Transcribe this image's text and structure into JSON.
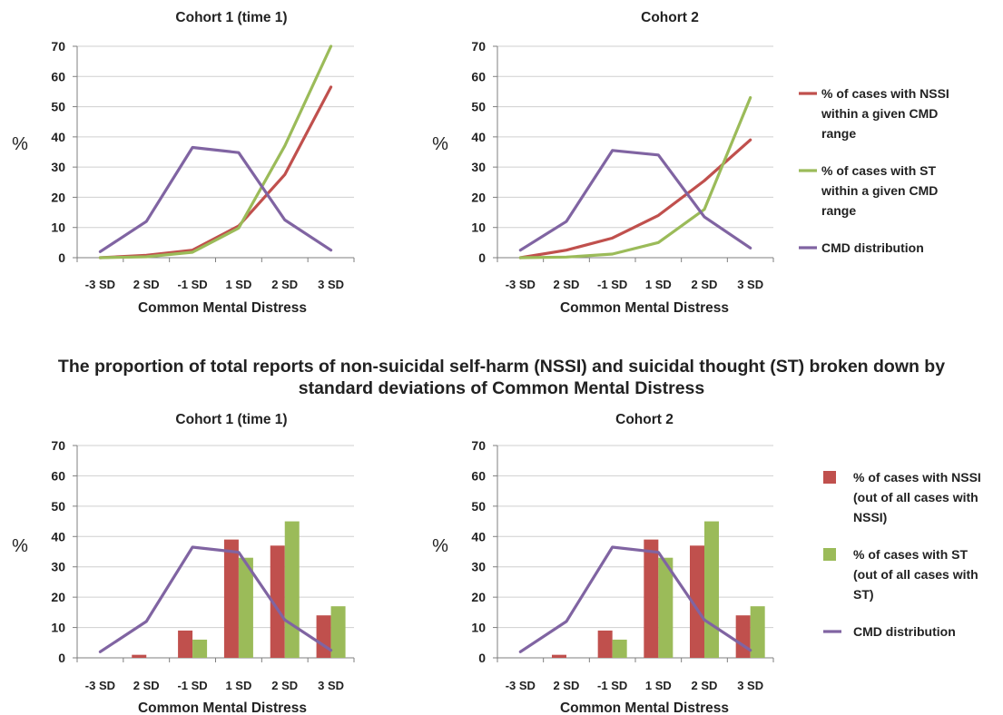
{
  "section_title_line1": "The proportion of total reports of non-suicidal self-harm (NSSI) and suicidal thought (ST) broken down by",
  "section_title_line2": "standard deviations of Common Mental Distress",
  "colors": {
    "nssi": "#c0504d",
    "st": "#9bbb59",
    "cmd": "#8064a2",
    "grid": "#cfcfcf",
    "axis": "#7f7f7f",
    "text": "#222222"
  },
  "chart_data": [
    {
      "type": "line",
      "title": "Cohort 1 (time 1)",
      "xlabel": "Common Mental Distress",
      "ylabel": "%",
      "categories": [
        "-3 SD",
        "2 SD",
        "-1 SD",
        "1 SD",
        "2 SD",
        "3 SD"
      ],
      "ylim": [
        0,
        70
      ],
      "yticks": [
        0,
        10,
        20,
        30,
        40,
        50,
        60,
        70
      ],
      "grid": true,
      "series": [
        {
          "name": "% of cases with NSSI within a given CMD range",
          "color_key": "nssi",
          "values": [
            0,
            0.8,
            2.5,
            10.5,
            27.5,
            56.5
          ]
        },
        {
          "name": "% of cases with ST within a given CMD range",
          "color_key": "st",
          "values": [
            0,
            0.3,
            1.8,
            9.8,
            37,
            70
          ]
        },
        {
          "name": "CMD distribution",
          "color_key": "cmd",
          "values": [
            2,
            12,
            36.5,
            34.8,
            12.5,
            2.5
          ]
        }
      ]
    },
    {
      "type": "line",
      "title": "Cohort 2",
      "xlabel": "Common Mental Distress",
      "ylabel": "%",
      "categories": [
        "-3 SD",
        "2 SD",
        "-1 SD",
        "1 SD",
        "2 SD",
        "3 SD"
      ],
      "ylim": [
        0,
        70
      ],
      "yticks": [
        0,
        10,
        20,
        30,
        40,
        50,
        60,
        70
      ],
      "grid": true,
      "legend": "right",
      "series": [
        {
          "name": "% of cases with NSSI within a given CMD range",
          "color_key": "nssi",
          "values": [
            0,
            2.5,
            6.5,
            14,
            25.5,
            39
          ]
        },
        {
          "name": "% of cases with ST within a given CMD range",
          "color_key": "st",
          "values": [
            0,
            0.2,
            1.2,
            5,
            16,
            53
          ]
        },
        {
          "name": "CMD distribution",
          "color_key": "cmd",
          "values": [
            2.5,
            12,
            35.5,
            34,
            13.5,
            3.2
          ]
        }
      ]
    },
    {
      "type": "bar",
      "title": "Cohort 1 (time 1)",
      "xlabel": "Common Mental Distress",
      "ylabel": "%",
      "categories": [
        "-3 SD",
        "2 SD",
        "-1 SD",
        "1 SD",
        "2 SD",
        "3 SD"
      ],
      "ylim": [
        0,
        70
      ],
      "yticks": [
        0,
        10,
        20,
        30,
        40,
        50,
        60,
        70
      ],
      "grid": true,
      "series": [
        {
          "name": "% of cases with NSSI (out of all cases with NSSI)",
          "kind": "bar",
          "color_key": "nssi",
          "values": [
            0,
            1,
            9,
            39,
            37,
            14
          ]
        },
        {
          "name": "% of cases with ST (out of all cases with ST)",
          "kind": "bar",
          "color_key": "st",
          "values": [
            0,
            0,
            6,
            33,
            45,
            17
          ]
        },
        {
          "name": "CMD distribution",
          "kind": "line",
          "color_key": "cmd",
          "values": [
            2,
            12,
            36.5,
            34.8,
            12.5,
            2.5
          ]
        }
      ]
    },
    {
      "type": "bar",
      "title": "Cohort 2",
      "xlabel": "Common Mental Distress",
      "ylabel": "%",
      "categories": [
        "-3 SD",
        "2 SD",
        "-1 SD",
        "1 SD",
        "2 SD",
        "3 SD"
      ],
      "ylim": [
        0,
        70
      ],
      "yticks": [
        0,
        10,
        20,
        30,
        40,
        50,
        60,
        70
      ],
      "grid": true,
      "legend": "right",
      "series": [
        {
          "name": "% of cases with NSSI (out of all cases with NSSI)",
          "kind": "bar",
          "color_key": "nssi",
          "values": [
            0,
            1,
            9,
            39,
            37,
            14
          ]
        },
        {
          "name": "% of cases with ST (out of all cases with ST)",
          "kind": "bar",
          "color_key": "st",
          "values": [
            0,
            0,
            6,
            33,
            45,
            17
          ]
        },
        {
          "name": "CMD distribution",
          "kind": "line",
          "color_key": "cmd",
          "values": [
            2,
            12,
            36.5,
            34.8,
            12.5,
            2.5
          ]
        }
      ]
    }
  ],
  "legends": [
    {
      "items": [
        {
          "color_key": "nssi",
          "symbol": "line",
          "lines": [
            "% of cases with NSSI",
            "within a given CMD",
            "range"
          ]
        },
        {
          "color_key": "st",
          "symbol": "line",
          "lines": [
            "% of cases with ST",
            "within a given CMD",
            "range"
          ]
        },
        {
          "color_key": "cmd",
          "symbol": "line",
          "lines": [
            "CMD distribution"
          ]
        }
      ]
    },
    {
      "items": [
        {
          "color_key": "nssi",
          "symbol": "box",
          "lines": [
            "% of cases with NSSI",
            "(out of all cases with",
            "NSSI)"
          ]
        },
        {
          "color_key": "st",
          "symbol": "box",
          "lines": [
            "% of cases with ST",
            "(out of all cases with",
            "ST)"
          ]
        },
        {
          "color_key": "cmd",
          "symbol": "line",
          "lines": [
            "CMD distribution"
          ]
        }
      ]
    }
  ]
}
